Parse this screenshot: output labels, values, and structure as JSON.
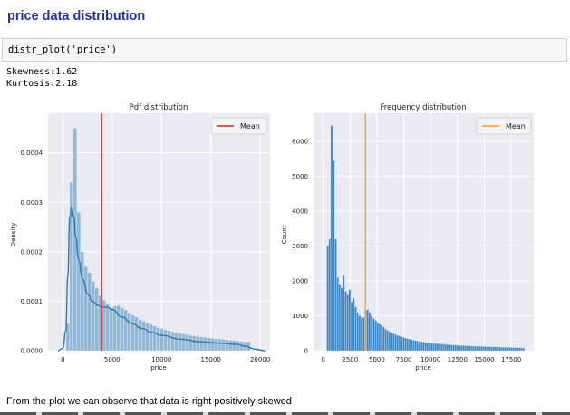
{
  "heading": "price data distribution",
  "code": {
    "source": "distr_plot('price')"
  },
  "output": {
    "skewness": "Skewness:1.62",
    "kurtosis": "Kurtosis:2.18"
  },
  "conclusion": "From the plot we can observe that data is right positively skewed",
  "colors": {
    "heading": "#1f2fb0",
    "mean_left": "#e02020",
    "mean_right": "#ff9f1c",
    "bar": "#4c8fc7",
    "kde": "#2d78b0",
    "plot_bg": "#eaeaf2"
  },
  "chart_data": [
    {
      "type": "bar",
      "title": "Pdf distribution",
      "xlabel": "price",
      "ylabel": "Density",
      "xlim": [
        -1500,
        21000
      ],
      "ylim": [
        0,
        0.00048
      ],
      "xticks": [
        "0",
        "5000",
        "10000",
        "15000",
        "20000"
      ],
      "xtick_values": [
        0,
        5000,
        10000,
        15000,
        20000
      ],
      "yticks": [
        "0.0000",
        "0.0001",
        "0.0002",
        "0.0003",
        "0.0004"
      ],
      "ytick_values": [
        0,
        0.0001,
        0.0002,
        0.0003,
        0.0004
      ],
      "legend": "Mean",
      "legend_position": "top-right",
      "grid": true,
      "mean": 3930,
      "bin_start": 326,
      "bin_width": 366,
      "values": [
        5.5e-05,
        0.00034,
        0.00045,
        0.00028,
        0.0002,
        0.00017,
        0.000158,
        0.00014,
        0.000127,
        0.000111,
        0.000102,
        9.4e-05,
        8.6e-05,
        9e-05,
        9.1e-05,
        8.7e-05,
        8.3e-05,
        7.7e-05,
        7.2e-05,
        6.8e-05,
        6.3e-05,
        6e-05,
        5.6e-05,
        5.3e-05,
        5e-05,
        4.7e-05,
        4.5e-05,
        4.3e-05,
        4.1e-05,
        3.9e-05,
        3.7e-05,
        3.5e-05,
        3.4e-05,
        3.3e-05,
        3.1e-05,
        3e-05,
        2.9e-05,
        2.8e-05,
        2.7e-05,
        2.6e-05,
        2.5e-05,
        2.4e-05,
        2.4e-05,
        2.3e-05,
        2.2e-05,
        2.1e-05,
        2.1e-05,
        2e-05,
        1.9e-05,
        1.8e-05,
        1.8e-05
      ],
      "kde_x": [
        -500,
        0,
        300,
        500,
        700,
        900,
        1100,
        1300,
        1600,
        2000,
        2500,
        3000,
        3500,
        4000,
        4500,
        5000,
        6000,
        7000,
        8000,
        9000,
        10000,
        12000,
        14000,
        16000,
        17500,
        18500,
        19500,
        20500
      ],
      "kde_y": [
        0,
        5e-06,
        4e-05,
        0.00015,
        0.00027,
        0.00029,
        0.00027,
        0.00023,
        0.000185,
        0.000145,
        0.000115,
        0.0001,
        9.2e-05,
        8.8e-05,
        8.8e-05,
        8.3e-05,
        6.8e-05,
        5.5e-05,
        4.5e-05,
        3.7e-05,
        3.1e-05,
        2.3e-05,
        1.8e-05,
        1.5e-05,
        1.3e-05,
        9e-06,
        3e-06,
        0
      ]
    },
    {
      "type": "bar",
      "title": "Frequency distribution",
      "xlabel": "price",
      "ylabel": "Count",
      "xlim": [
        -900,
        19600
      ],
      "ylim": [
        0,
        6800
      ],
      "xticks": [
        "0",
        "2500",
        "5000",
        "7500",
        "10000",
        "12500",
        "15000",
        "17500"
      ],
      "xtick_values": [
        0,
        2500,
        5000,
        7500,
        10000,
        12500,
        15000,
        17500
      ],
      "yticks": [
        "0",
        "1000",
        "2000",
        "3000",
        "4000",
        "5000",
        "6000"
      ],
      "ytick_values": [
        0,
        1000,
        2000,
        3000,
        4000,
        5000,
        6000
      ],
      "legend": "Mean",
      "legend_position": "top-right",
      "grid": true,
      "mean": 3930,
      "bin_start": 326,
      "bin_width": 186,
      "values": [
        3000,
        3200,
        6450,
        5450,
        3200,
        2100,
        1900,
        1800,
        2150,
        1700,
        1600,
        1750,
        1400,
        1500,
        1250,
        1100,
        1000,
        950,
        950,
        1150,
        1180,
        1100,
        1000,
        920,
        870,
        800,
        760,
        720,
        680,
        620,
        580,
        540,
        510,
        490,
        460,
        440,
        420,
        400,
        380,
        360,
        345,
        330,
        315,
        300,
        290,
        280,
        270,
        260,
        250,
        240,
        232,
        225,
        218,
        210,
        205,
        200,
        195,
        190,
        185,
        180,
        176,
        172,
        168,
        164,
        160,
        156,
        152,
        148,
        145,
        142,
        139,
        136,
        133,
        130,
        128,
        126,
        124,
        122,
        120,
        118,
        116,
        114,
        112,
        110,
        108,
        106,
        104,
        102,
        100,
        98,
        96,
        94,
        92,
        90,
        88,
        86,
        84,
        82,
        80
      ]
    }
  ]
}
